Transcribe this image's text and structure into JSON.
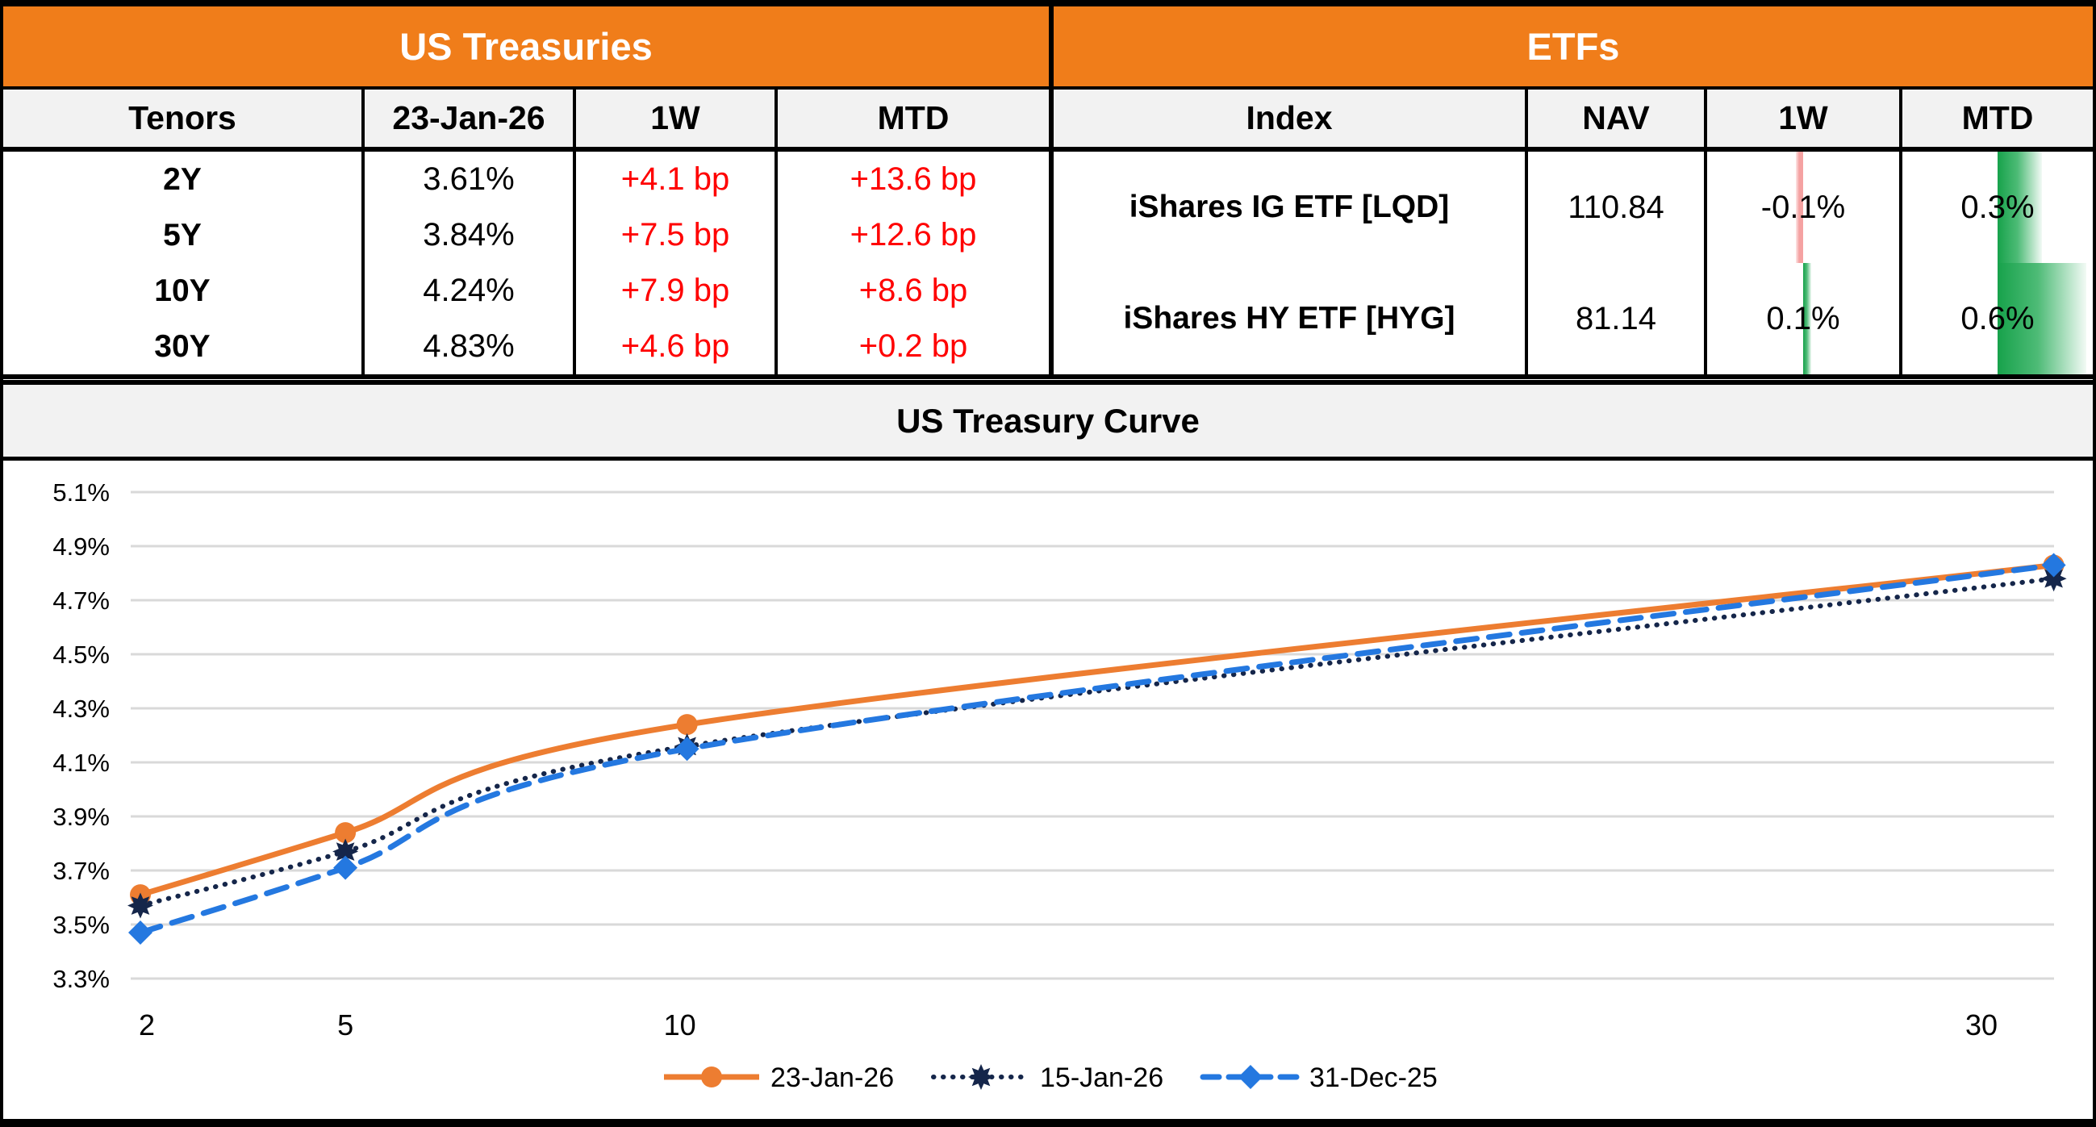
{
  "treasuries": {
    "title": "US Treasuries",
    "headers": [
      "Tenors",
      "23-Jan-26",
      "1W",
      "MTD"
    ],
    "rows": [
      {
        "tenor": "2Y",
        "value": "3.61%",
        "w1": "+4.1 bp",
        "mtd": "+13.6 bp"
      },
      {
        "tenor": "5Y",
        "value": "3.84%",
        "w1": "+7.5 bp",
        "mtd": "+12.6 bp"
      },
      {
        "tenor": "10Y",
        "value": "4.24%",
        "w1": "+7.9 bp",
        "mtd": "+8.6 bp"
      },
      {
        "tenor": "30Y",
        "value": "4.83%",
        "w1": "+4.6 bp",
        "mtd": "+0.2 bp"
      }
    ]
  },
  "etfs": {
    "title": "ETFs",
    "headers": [
      "Index",
      "NAV",
      "1W",
      "MTD"
    ],
    "rows": [
      {
        "index": "iShares IG ETF [LQD]",
        "nav": "110.84",
        "w1": "-0.1%",
        "w1_value": -0.1,
        "mtd": "0.3%",
        "mtd_value": 0.3
      },
      {
        "index": "iShares HY ETF [HYG]",
        "nav": "81.14",
        "w1": "0.1%",
        "w1_value": 0.1,
        "mtd": "0.6%",
        "mtd_value": 0.6
      }
    ]
  },
  "chart_title": "US Treasury Curve",
  "chart_data": {
    "type": "line",
    "title": "US Treasury Curve",
    "x": [
      2,
      5,
      10,
      30
    ],
    "x_tick_labels": [
      "2",
      "5",
      "10",
      "30"
    ],
    "series": [
      {
        "name": "23-Jan-26",
        "values": [
          3.61,
          3.84,
          4.24,
          4.83
        ],
        "color": "#ED7D31",
        "line_style": "solid",
        "marker": "circle"
      },
      {
        "name": "15-Jan-26",
        "values": [
          3.57,
          3.77,
          4.16,
          4.78
        ],
        "color": "#15264A",
        "line_style": "dotted",
        "marker": "star"
      },
      {
        "name": "31-Dec-25",
        "values": [
          3.47,
          3.71,
          4.15,
          4.83
        ],
        "color": "#2478E0",
        "line_style": "dashed",
        "marker": "diamond"
      }
    ],
    "xlabel": "",
    "ylabel": "",
    "ylim": [
      3.3,
      5.1
    ],
    "ytick_step": 0.2,
    "ytick_labels": [
      "5.1%",
      "4.9%",
      "4.7%",
      "4.5%",
      "4.3%",
      "4.1%",
      "3.9%",
      "3.7%",
      "3.5%",
      "3.3%"
    ],
    "grid": true,
    "legend_position": "bottom-center"
  },
  "colors": {
    "accent_orange": "#F07D1A",
    "negative_red": "#FF0000",
    "bar_negative_pink": "#F5A2A2",
    "bar_positive_green": "#17A24B",
    "header_gray": "#F2F2F2",
    "gridline_gray": "#D9D9D9",
    "border_black": "#000000"
  }
}
